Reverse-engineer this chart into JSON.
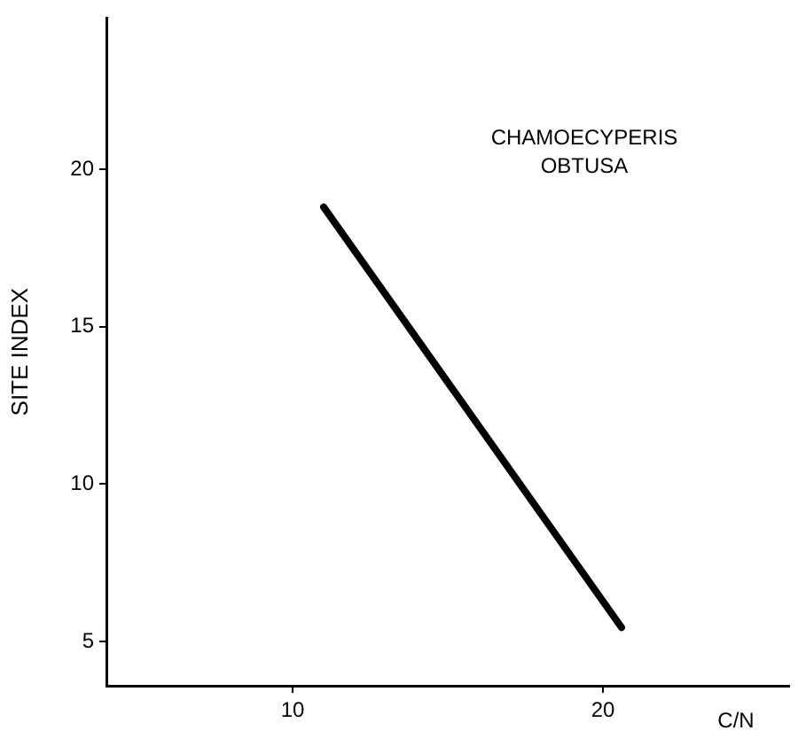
{
  "chart_data": {
    "type": "line",
    "xlabel": "C/N",
    "ylabel": "SITE INDEX",
    "annotations": [
      "CHAMOECYPERIS\nOBTUSA"
    ],
    "x": [
      11.0,
      20.6
    ],
    "series": [
      {
        "color": "#000000",
        "values": [
          18.8,
          5.45
        ]
      }
    ],
    "xlim": [
      4,
      26
    ],
    "xticks": [
      10,
      20
    ],
    "ylim": [
      3.6,
      24.8
    ],
    "yticks": [
      5,
      10,
      15,
      20
    ],
    "grid": false,
    "legend": false,
    "marker": "none",
    "line_style": "solid"
  }
}
